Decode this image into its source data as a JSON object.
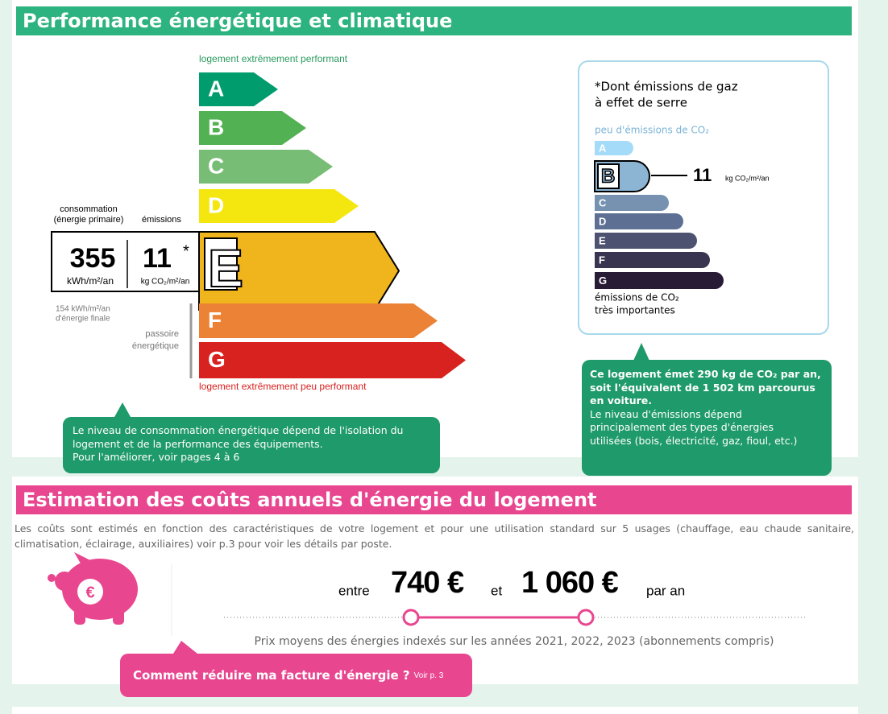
{
  "performance": {
    "title": "Performance énergétique et climatique",
    "energy_scale": {
      "top_label": "logement extrêmement performant",
      "bottom_label": "logement extrêmement peu performant",
      "classes": [
        "A",
        "B",
        "C",
        "D",
        "E",
        "F",
        "G"
      ]
    },
    "consumption": {
      "label": [
        "consommation",
        "(énergie primaire)"
      ],
      "value": "355",
      "unit": "kWh/m²/an"
    },
    "emissions": {
      "label": "émissions",
      "value": "11",
      "mark": "*",
      "unit": "kg CO₂/m²/an"
    },
    "final_energy": [
      "154 kWh/m²/an",
      "d'énergie finale"
    ],
    "passoire": [
      "passoire",
      "énergétique"
    ],
    "note": [
      "Le niveau de consommation énergétique dépend de l'isolation du",
      "logement et de la performance des équipements.",
      "Pour l'améliorer, voir pages 4 à 6"
    ]
  },
  "ghg": {
    "title": [
      "*Dont émissions de gaz",
      "à effet de serre"
    ],
    "top_label": "peu d'émissions de CO₂",
    "classes": [
      "A",
      "B",
      "C",
      "D",
      "E",
      "F",
      "G"
    ],
    "value": "11",
    "unit": "kg CO₂/m²/an",
    "bottom_label": [
      "émissions de CO₂",
      "très importantes"
    ],
    "note": {
      "bold": [
        "Ce logement émet 290 kg de CO₂ par an,",
        "soit l'équivalent de 1 502 km parcourus",
        "en voiture."
      ],
      "text": [
        "Le niveau d'émissions dépend",
        "principalement des types d'énergies",
        "utilisées (bois, électricité, gaz, fioul, etc.)"
      ]
    }
  },
  "costs": {
    "title": "Estimation des coûts annuels d'énergie du logement",
    "description": "Les coûts sont estimés en fonction des caractéristiques de votre logement et pour une utilisation standard sur 5 usages (chauffage, eau chaude sanitaire, climatisation, éclairage, auxiliaires) voir p.3 pour voir les détails par poste.",
    "icon": "€",
    "range": {
      "from_label": "entre",
      "min": "740 €",
      "and": "et",
      "max": "1 060 €",
      "per": "par an"
    },
    "footnote": "Prix moyens des énergies indexés sur les années 2021, 2022, 2023 (abonnements compris)",
    "button": {
      "label": "Comment réduire ma facture d'énergie ?",
      "ref": "Voir p. 3"
    }
  }
}
